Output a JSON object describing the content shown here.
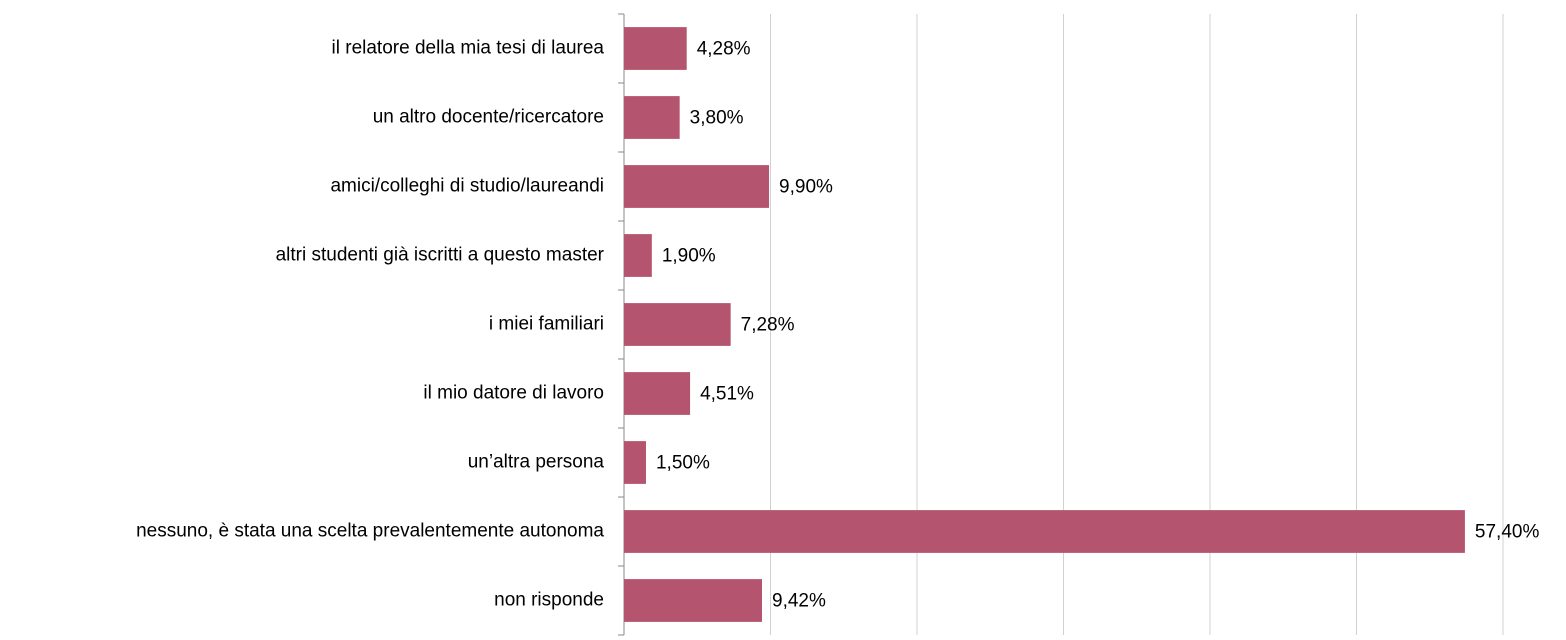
{
  "chart_data": {
    "type": "bar",
    "orientation": "horizontal",
    "categories": [
      "il relatore della mia tesi di laurea",
      "un altro docente/ricercatore",
      "amici/colleghi di studio/laureandi",
      "altri studenti già iscritti a questo master",
      "i miei familiari",
      "il mio datore di lavoro",
      "un’altra persona ",
      "nessuno, è stata una scelta prevalentemente autonoma",
      "non risponde"
    ],
    "values": [
      4.28,
      3.8,
      9.9,
      1.9,
      7.28,
      4.51,
      1.5,
      57.4,
      9.42
    ],
    "value_labels": [
      "4,28%",
      "3,80%",
      "9,90%",
      "1,90%",
      "7,28%",
      "4,51%",
      "1,50%",
      "57,40%",
      "9,42%"
    ],
    "color": "#b5546f",
    "xlim": [
      0,
      60
    ],
    "xticks": [
      0,
      10,
      20,
      30,
      40,
      50,
      60
    ],
    "grid": true
  }
}
